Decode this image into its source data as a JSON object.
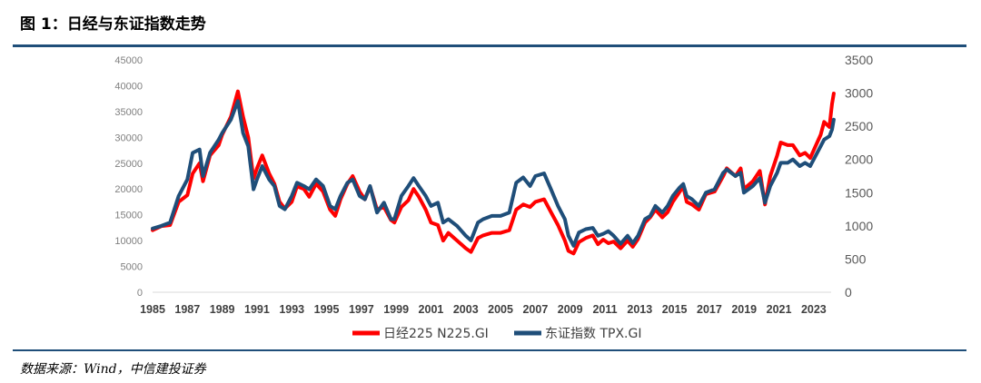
{
  "figure": {
    "title": "图 1：日经与东证指数走势",
    "source": "数据来源：Wind，中信建投证券"
  },
  "chart_data": {
    "type": "line",
    "title": "",
    "x_start": 1985,
    "x_end": 2024,
    "x_ticks": [
      "1985",
      "1987",
      "1989",
      "1991",
      "1993",
      "1995",
      "1997",
      "1999",
      "2001",
      "2003",
      "2005",
      "2007",
      "2009",
      "2011",
      "2013",
      "2015",
      "2017",
      "2019",
      "2021",
      "2023"
    ],
    "y_left": {
      "min": 0,
      "max": 45000,
      "ticks": [
        "0",
        "5000",
        "10000",
        "15000",
        "20000",
        "25000",
        "30000",
        "35000",
        "40000",
        "45000"
      ]
    },
    "y_right": {
      "min": 0,
      "max": 3500,
      "ticks": [
        "0",
        "500",
        "1000",
        "1500",
        "2000",
        "2500",
        "3000",
        "3500"
      ]
    },
    "legend_position": "bottom",
    "colors": {
      "nikkei": "#ff0000",
      "topix": "#1f4e79"
    },
    "series": [
      {
        "name": "日经225 N225.GI",
        "axis": "left",
        "points": [
          [
            1985.0,
            12000
          ],
          [
            1985.5,
            12800
          ],
          [
            1986.0,
            13000
          ],
          [
            1986.5,
            17500
          ],
          [
            1987.0,
            18800
          ],
          [
            1987.3,
            23000
          ],
          [
            1987.7,
            25000
          ],
          [
            1987.9,
            21500
          ],
          [
            1988.3,
            26500
          ],
          [
            1988.8,
            28500
          ],
          [
            1989.0,
            30500
          ],
          [
            1989.5,
            34000
          ],
          [
            1989.9,
            38900
          ],
          [
            1990.2,
            34000
          ],
          [
            1990.5,
            30000
          ],
          [
            1990.8,
            22000
          ],
          [
            1991.0,
            24000
          ],
          [
            1991.3,
            26500
          ],
          [
            1991.7,
            23000
          ],
          [
            1992.0,
            21000
          ],
          [
            1992.3,
            17500
          ],
          [
            1992.6,
            16200
          ],
          [
            1993.0,
            17500
          ],
          [
            1993.3,
            20500
          ],
          [
            1993.7,
            20000
          ],
          [
            1994.0,
            18500
          ],
          [
            1994.4,
            21000
          ],
          [
            1994.8,
            19500
          ],
          [
            1995.2,
            16000
          ],
          [
            1995.5,
            14800
          ],
          [
            1995.8,
            18000
          ],
          [
            1996.2,
            21000
          ],
          [
            1996.5,
            22500
          ],
          [
            1996.9,
            19500
          ],
          [
            1997.2,
            18000
          ],
          [
            1997.5,
            20500
          ],
          [
            1997.9,
            16000
          ],
          [
            1998.3,
            16500
          ],
          [
            1998.7,
            14000
          ],
          [
            1998.9,
            13500
          ],
          [
            1999.3,
            16500
          ],
          [
            1999.7,
            17800
          ],
          [
            2000.0,
            20000
          ],
          [
            2000.3,
            18500
          ],
          [
            2000.7,
            16000
          ],
          [
            2001.0,
            13500
          ],
          [
            2001.4,
            13000
          ],
          [
            2001.7,
            10000
          ],
          [
            2002.0,
            11500
          ],
          [
            2002.5,
            10000
          ],
          [
            2003.0,
            8500
          ],
          [
            2003.3,
            7800
          ],
          [
            2003.7,
            10500
          ],
          [
            2004.0,
            11000
          ],
          [
            2004.5,
            11500
          ],
          [
            2005.0,
            11500
          ],
          [
            2005.5,
            12000
          ],
          [
            2005.9,
            16000
          ],
          [
            2006.3,
            17000
          ],
          [
            2006.7,
            16500
          ],
          [
            2007.0,
            17500
          ],
          [
            2007.5,
            18000
          ],
          [
            2007.9,
            15500
          ],
          [
            2008.3,
            13000
          ],
          [
            2008.7,
            10000
          ],
          [
            2008.9,
            8000
          ],
          [
            2009.2,
            7500
          ],
          [
            2009.5,
            9700
          ],
          [
            2009.9,
            10500
          ],
          [
            2010.3,
            11000
          ],
          [
            2010.6,
            9300
          ],
          [
            2010.9,
            10200
          ],
          [
            2011.2,
            9500
          ],
          [
            2011.5,
            9800
          ],
          [
            2011.9,
            8500
          ],
          [
            2012.3,
            10000
          ],
          [
            2012.6,
            8800
          ],
          [
            2012.9,
            10300
          ],
          [
            2013.3,
            13500
          ],
          [
            2013.6,
            14500
          ],
          [
            2013.9,
            16000
          ],
          [
            2014.3,
            14500
          ],
          [
            2014.6,
            15500
          ],
          [
            2014.9,
            17500
          ],
          [
            2015.3,
            19500
          ],
          [
            2015.5,
            20500
          ],
          [
            2015.7,
            17500
          ],
          [
            2016.0,
            17000
          ],
          [
            2016.4,
            16000
          ],
          [
            2016.8,
            19000
          ],
          [
            2017.3,
            19500
          ],
          [
            2017.8,
            22500
          ],
          [
            2018.0,
            24000
          ],
          [
            2018.5,
            22500
          ],
          [
            2018.8,
            24000
          ],
          [
            2018.99,
            20000
          ],
          [
            2019.5,
            21500
          ],
          [
            2019.9,
            23500
          ],
          [
            2020.2,
            17000
          ],
          [
            2020.5,
            22500
          ],
          [
            2020.9,
            26500
          ],
          [
            2021.1,
            29000
          ],
          [
            2021.5,
            28500
          ],
          [
            2021.8,
            28500
          ],
          [
            2022.2,
            26500
          ],
          [
            2022.5,
            27000
          ],
          [
            2022.8,
            26000
          ],
          [
            2023.0,
            27500
          ],
          [
            2023.4,
            30500
          ],
          [
            2023.6,
            33000
          ],
          [
            2023.9,
            32000
          ],
          [
            2024.05,
            36500
          ],
          [
            2024.15,
            38500
          ]
        ]
      },
      {
        "name": "东证指数 TPX.GI",
        "axis": "right",
        "points": [
          [
            1985.0,
            960
          ],
          [
            1985.5,
            1000
          ],
          [
            1986.0,
            1050
          ],
          [
            1986.5,
            1450
          ],
          [
            1987.0,
            1700
          ],
          [
            1987.3,
            2100
          ],
          [
            1987.7,
            2150
          ],
          [
            1987.9,
            1750
          ],
          [
            1988.3,
            2100
          ],
          [
            1988.8,
            2300
          ],
          [
            1989.0,
            2400
          ],
          [
            1989.5,
            2600
          ],
          [
            1989.9,
            2880
          ],
          [
            1990.2,
            2400
          ],
          [
            1990.5,
            2200
          ],
          [
            1990.8,
            1550
          ],
          [
            1991.0,
            1700
          ],
          [
            1991.3,
            1900
          ],
          [
            1991.7,
            1700
          ],
          [
            1992.0,
            1600
          ],
          [
            1992.3,
            1300
          ],
          [
            1992.6,
            1250
          ],
          [
            1993.0,
            1450
          ],
          [
            1993.3,
            1650
          ],
          [
            1993.7,
            1600
          ],
          [
            1994.0,
            1550
          ],
          [
            1994.4,
            1700
          ],
          [
            1994.8,
            1600
          ],
          [
            1995.2,
            1300
          ],
          [
            1995.5,
            1250
          ],
          [
            1995.8,
            1450
          ],
          [
            1996.2,
            1650
          ],
          [
            1996.5,
            1700
          ],
          [
            1996.9,
            1450
          ],
          [
            1997.2,
            1400
          ],
          [
            1997.5,
            1600
          ],
          [
            1997.9,
            1200
          ],
          [
            1998.3,
            1350
          ],
          [
            1998.7,
            1100
          ],
          [
            1998.9,
            1100
          ],
          [
            1999.3,
            1450
          ],
          [
            1999.7,
            1600
          ],
          [
            2000.0,
            1720
          ],
          [
            2000.3,
            1600
          ],
          [
            2000.7,
            1450
          ],
          [
            2001.0,
            1300
          ],
          [
            2001.4,
            1350
          ],
          [
            2001.7,
            1050
          ],
          [
            2002.0,
            1100
          ],
          [
            2002.5,
            1000
          ],
          [
            2003.0,
            850
          ],
          [
            2003.3,
            780
          ],
          [
            2003.7,
            1050
          ],
          [
            2004.0,
            1100
          ],
          [
            2004.5,
            1150
          ],
          [
            2005.0,
            1150
          ],
          [
            2005.5,
            1200
          ],
          [
            2005.9,
            1650
          ],
          [
            2006.3,
            1730
          ],
          [
            2006.7,
            1600
          ],
          [
            2007.0,
            1750
          ],
          [
            2007.5,
            1790
          ],
          [
            2007.9,
            1550
          ],
          [
            2008.3,
            1300
          ],
          [
            2008.7,
            1100
          ],
          [
            2008.9,
            850
          ],
          [
            2009.2,
            700
          ],
          [
            2009.5,
            900
          ],
          [
            2009.9,
            950
          ],
          [
            2010.3,
            970
          ],
          [
            2010.6,
            850
          ],
          [
            2010.9,
            880
          ],
          [
            2011.2,
            920
          ],
          [
            2011.5,
            850
          ],
          [
            2011.9,
            730
          ],
          [
            2012.3,
            850
          ],
          [
            2012.6,
            740
          ],
          [
            2012.9,
            850
          ],
          [
            2013.3,
            1100
          ],
          [
            2013.6,
            1150
          ],
          [
            2013.9,
            1300
          ],
          [
            2014.3,
            1200
          ],
          [
            2014.6,
            1300
          ],
          [
            2014.9,
            1450
          ],
          [
            2015.3,
            1580
          ],
          [
            2015.5,
            1630
          ],
          [
            2015.7,
            1450
          ],
          [
            2016.0,
            1400
          ],
          [
            2016.4,
            1300
          ],
          [
            2016.8,
            1500
          ],
          [
            2017.3,
            1550
          ],
          [
            2017.8,
            1800
          ],
          [
            2018.0,
            1850
          ],
          [
            2018.5,
            1750
          ],
          [
            2018.8,
            1800
          ],
          [
            2018.99,
            1500
          ],
          [
            2019.5,
            1600
          ],
          [
            2019.9,
            1720
          ],
          [
            2020.2,
            1350
          ],
          [
            2020.5,
            1600
          ],
          [
            2020.9,
            1800
          ],
          [
            2021.1,
            1950
          ],
          [
            2021.5,
            1950
          ],
          [
            2021.8,
            2000
          ],
          [
            2022.2,
            1900
          ],
          [
            2022.5,
            1950
          ],
          [
            2022.8,
            1900
          ],
          [
            2023.0,
            2000
          ],
          [
            2023.4,
            2200
          ],
          [
            2023.6,
            2300
          ],
          [
            2023.9,
            2350
          ],
          [
            2024.05,
            2450
          ],
          [
            2024.15,
            2600
          ]
        ]
      }
    ]
  }
}
